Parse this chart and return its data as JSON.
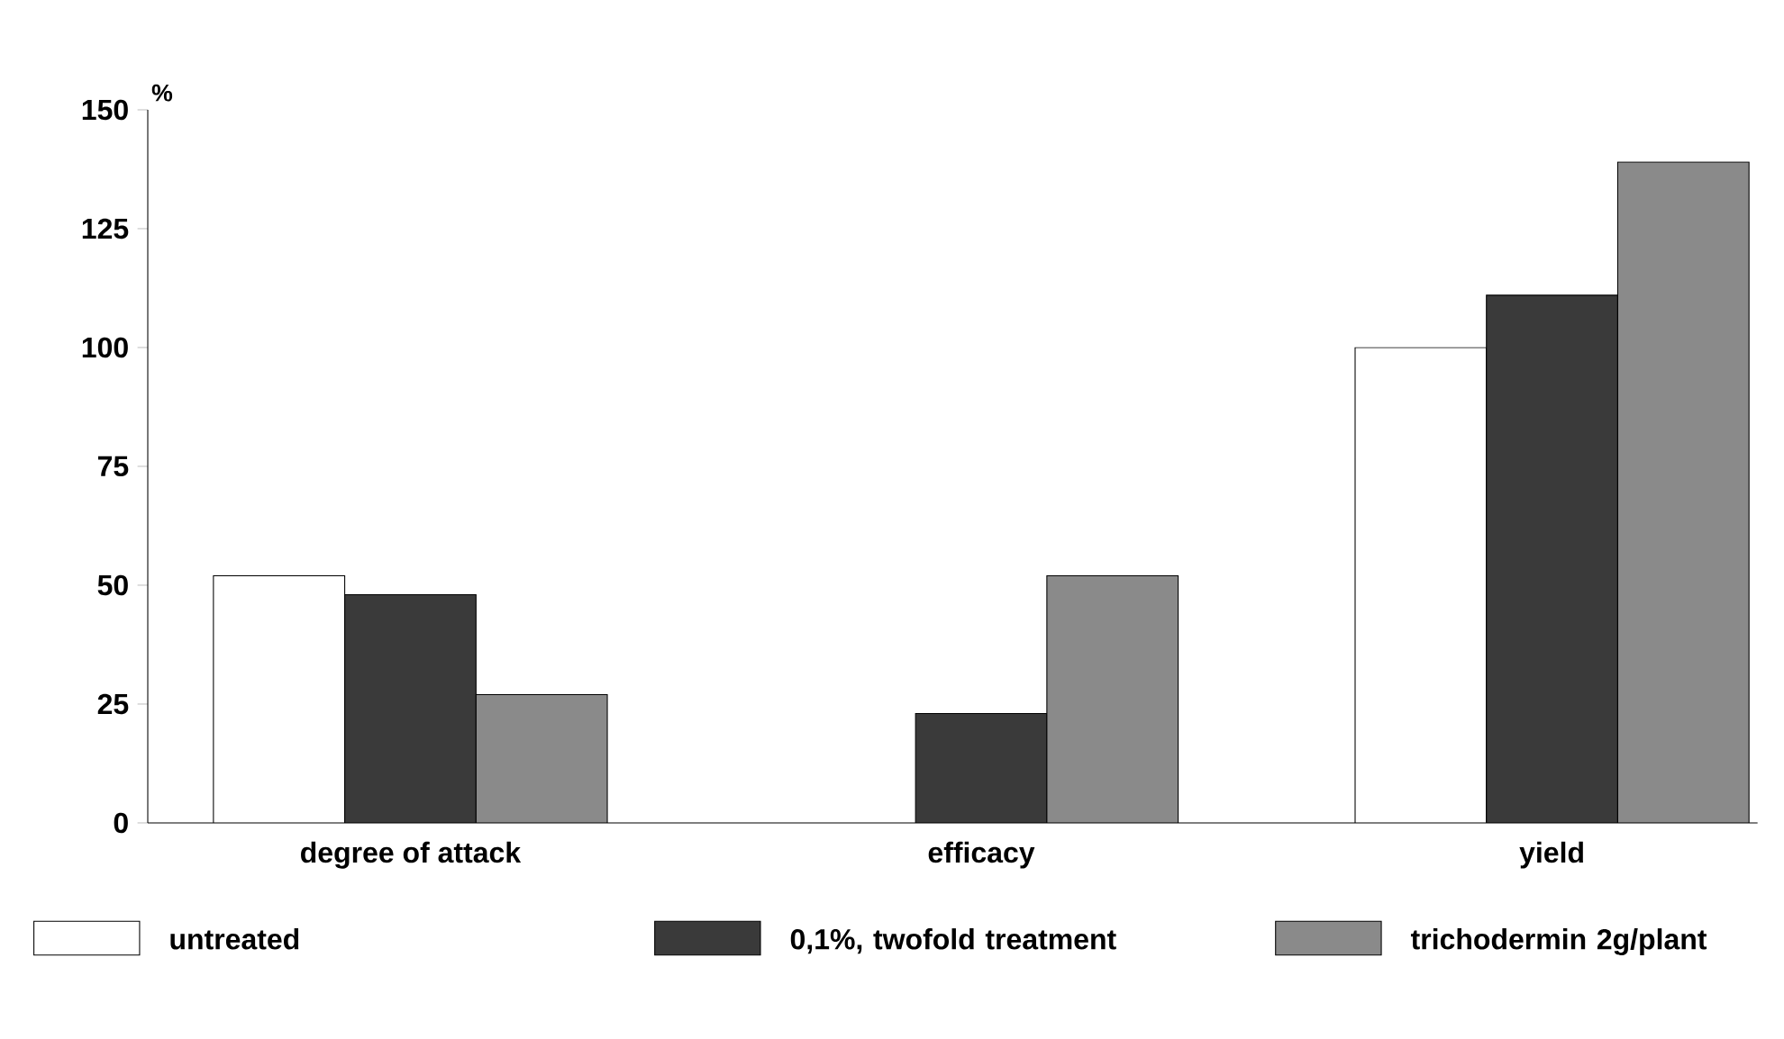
{
  "chart_data": {
    "type": "bar",
    "ylabel": "%",
    "categories": [
      "degree of attack",
      "efficacy",
      "yield"
    ],
    "series": [
      {
        "name": "untreated",
        "color": "#ffffff",
        "values": [
          52,
          null,
          100
        ]
      },
      {
        "name": "0,1%, twofold treatment",
        "color": "#3a3a3a",
        "values": [
          48,
          23,
          111
        ]
      },
      {
        "name": "trichodermin 2g/plant",
        "color": "#8a8a8a",
        "values": [
          27,
          52,
          139
        ]
      }
    ],
    "ylim": [
      0,
      150
    ],
    "yticks": [
      0,
      25,
      50,
      75,
      100,
      125,
      150
    ],
    "grid": false,
    "legend": "bottom"
  }
}
